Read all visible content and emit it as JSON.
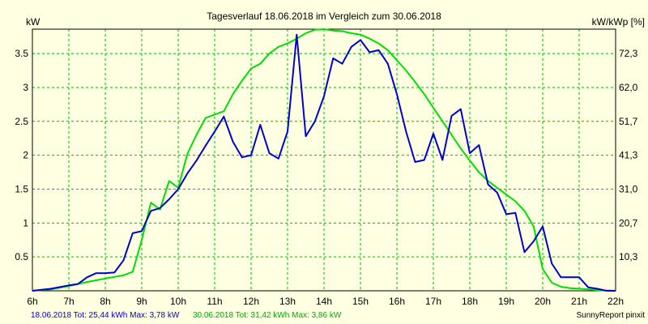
{
  "chart_data": {
    "type": "line",
    "title": "Tagesverlauf 18.06.2018 im Vergleich zum 30.06.2018",
    "ylabel_left": "kW",
    "ylabel_right": "kW/kWp [%]",
    "xlim": [
      6,
      22
    ],
    "ylim": [
      0,
      3.86
    ],
    "grid": true,
    "x_ticks": [
      {
        "value": 6,
        "label": "6h"
      },
      {
        "value": 7,
        "label": "7h"
      },
      {
        "value": 8,
        "label": "8h"
      },
      {
        "value": 9,
        "label": "9h"
      },
      {
        "value": 10,
        "label": "10h"
      },
      {
        "value": 11,
        "label": "11h"
      },
      {
        "value": 12,
        "label": "12h"
      },
      {
        "value": 13,
        "label": "13h"
      },
      {
        "value": 14,
        "label": "14h"
      },
      {
        "value": 15,
        "label": "15h"
      },
      {
        "value": 16,
        "label": "16h"
      },
      {
        "value": 17,
        "label": "17h"
      },
      {
        "value": 18,
        "label": "18h"
      },
      {
        "value": 19,
        "label": "19h"
      },
      {
        "value": 20,
        "label": "20h"
      },
      {
        "value": 21,
        "label": "21h"
      },
      {
        "value": 22,
        "label": "22h"
      }
    ],
    "y_ticks_left": [
      {
        "value": 0.5,
        "label": "0.5"
      },
      {
        "value": 1.0,
        "label": "1"
      },
      {
        "value": 1.5,
        "label": "1.5"
      },
      {
        "value": 2.0,
        "label": "2"
      },
      {
        "value": 2.5,
        "label": "2.5"
      },
      {
        "value": 3.0,
        "label": "3"
      },
      {
        "value": 3.5,
        "label": "3.5"
      }
    ],
    "y_ticks_right": [
      {
        "value": 0.5,
        "label": "10,3"
      },
      {
        "value": 1.0,
        "label": "20,7"
      },
      {
        "value": 1.5,
        "label": "31,0"
      },
      {
        "value": 2.0,
        "label": "41,3"
      },
      {
        "value": 2.5,
        "label": "51,7"
      },
      {
        "value": 3.0,
        "label": "62,0"
      },
      {
        "value": 3.5,
        "label": "72,3"
      }
    ],
    "series": [
      {
        "date": "18.06.2018",
        "color": "#0000cc",
        "points": [
          [
            6.0,
            0.0
          ],
          [
            6.5,
            0.03
          ],
          [
            7.0,
            0.08
          ],
          [
            7.25,
            0.1
          ],
          [
            7.5,
            0.2
          ],
          [
            7.75,
            0.26
          ],
          [
            8.0,
            0.26
          ],
          [
            8.25,
            0.27
          ],
          [
            8.5,
            0.45
          ],
          [
            8.75,
            0.85
          ],
          [
            9.0,
            0.88
          ],
          [
            9.25,
            1.18
          ],
          [
            9.5,
            1.22
          ],
          [
            9.75,
            1.35
          ],
          [
            10.0,
            1.5
          ],
          [
            10.25,
            1.73
          ],
          [
            10.5,
            1.92
          ],
          [
            10.75,
            2.14
          ],
          [
            11.0,
            2.35
          ],
          [
            11.25,
            2.57
          ],
          [
            11.5,
            2.2
          ],
          [
            11.75,
            1.97
          ],
          [
            12.0,
            2.0
          ],
          [
            12.25,
            2.45
          ],
          [
            12.5,
            2.03
          ],
          [
            12.75,
            1.95
          ],
          [
            13.0,
            2.35
          ],
          [
            13.25,
            3.78
          ],
          [
            13.5,
            2.28
          ],
          [
            13.75,
            2.5
          ],
          [
            14.0,
            2.87
          ],
          [
            14.25,
            3.43
          ],
          [
            14.5,
            3.35
          ],
          [
            14.75,
            3.6
          ],
          [
            15.0,
            3.7
          ],
          [
            15.25,
            3.52
          ],
          [
            15.5,
            3.55
          ],
          [
            15.75,
            3.35
          ],
          [
            16.0,
            2.9
          ],
          [
            16.25,
            2.35
          ],
          [
            16.5,
            1.9
          ],
          [
            16.75,
            1.93
          ],
          [
            17.0,
            2.32
          ],
          [
            17.25,
            1.93
          ],
          [
            17.5,
            2.58
          ],
          [
            17.75,
            2.68
          ],
          [
            18.0,
            2.03
          ],
          [
            18.25,
            2.15
          ],
          [
            18.5,
            1.57
          ],
          [
            18.75,
            1.45
          ],
          [
            19.0,
            1.13
          ],
          [
            19.25,
            1.15
          ],
          [
            19.5,
            0.57
          ],
          [
            19.75,
            0.73
          ],
          [
            20.0,
            0.95
          ],
          [
            20.25,
            0.4
          ],
          [
            20.5,
            0.2
          ],
          [
            20.75,
            0.2
          ],
          [
            21.0,
            0.2
          ],
          [
            21.25,
            0.05
          ],
          [
            21.5,
            0.03
          ],
          [
            21.75,
            0.0
          ],
          [
            22.0,
            0.0
          ]
        ]
      },
      {
        "date": "30.06.2018",
        "color": "#00dd00",
        "points": [
          [
            6.0,
            0.0
          ],
          [
            6.5,
            0.02
          ],
          [
            7.0,
            0.07
          ],
          [
            7.5,
            0.13
          ],
          [
            8.0,
            0.18
          ],
          [
            8.5,
            0.23
          ],
          [
            8.75,
            0.28
          ],
          [
            9.0,
            0.75
          ],
          [
            9.25,
            1.3
          ],
          [
            9.5,
            1.2
          ],
          [
            9.75,
            1.62
          ],
          [
            10.0,
            1.52
          ],
          [
            10.25,
            2.02
          ],
          [
            10.5,
            2.3
          ],
          [
            10.75,
            2.55
          ],
          [
            11.0,
            2.6
          ],
          [
            11.25,
            2.65
          ],
          [
            11.5,
            2.9
          ],
          [
            11.75,
            3.1
          ],
          [
            12.0,
            3.28
          ],
          [
            12.25,
            3.35
          ],
          [
            12.5,
            3.5
          ],
          [
            12.75,
            3.6
          ],
          [
            13.0,
            3.65
          ],
          [
            13.25,
            3.72
          ],
          [
            13.5,
            3.8
          ],
          [
            13.75,
            3.85
          ],
          [
            14.0,
            3.86
          ],
          [
            14.25,
            3.84
          ],
          [
            14.5,
            3.83
          ],
          [
            14.75,
            3.8
          ],
          [
            15.0,
            3.78
          ],
          [
            15.25,
            3.72
          ],
          [
            15.5,
            3.65
          ],
          [
            15.75,
            3.55
          ],
          [
            16.0,
            3.4
          ],
          [
            16.25,
            3.25
          ],
          [
            16.5,
            3.08
          ],
          [
            16.75,
            2.9
          ],
          [
            17.0,
            2.7
          ],
          [
            17.25,
            2.5
          ],
          [
            17.5,
            2.3
          ],
          [
            17.75,
            2.1
          ],
          [
            18.0,
            1.92
          ],
          [
            18.25,
            1.75
          ],
          [
            18.5,
            1.62
          ],
          [
            18.75,
            1.52
          ],
          [
            19.0,
            1.42
          ],
          [
            19.25,
            1.32
          ],
          [
            19.5,
            1.18
          ],
          [
            19.75,
            0.95
          ],
          [
            20.0,
            0.32
          ],
          [
            20.25,
            0.12
          ],
          [
            20.5,
            0.06
          ],
          [
            20.75,
            0.04
          ],
          [
            21.0,
            0.03
          ],
          [
            21.25,
            0.02
          ],
          [
            21.5,
            0.01
          ],
          [
            22.0,
            0.0
          ]
        ]
      }
    ]
  },
  "legend": {
    "series1": "18.06.2018 Tot: 25,44 kWh Max: 3,78 kW",
    "series2": "30.06.2018 Tot: 31,42 kWh Max: 3,86 kW"
  },
  "branding": "SunnyReport pinxit",
  "colors": {
    "background": "#ffffe1",
    "grid": "#00bb00",
    "frame": "#000000"
  }
}
